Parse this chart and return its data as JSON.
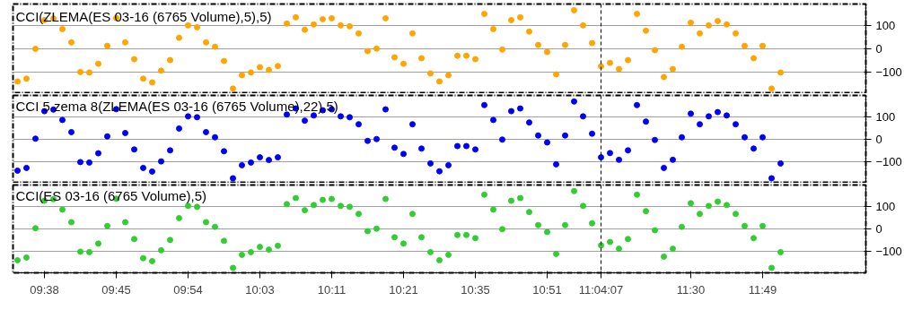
{
  "chart_data": [
    {
      "type": "scatter",
      "title": "CCI(ZLEMA(ES 03-16 (6765 Volume),5),5)",
      "categories": [
        null,
        null,
        null,
        "09:38",
        null,
        null,
        null,
        null,
        null,
        null,
        null,
        "09:45",
        null,
        null,
        null,
        null,
        null,
        null,
        null,
        "09:54",
        null,
        null,
        null,
        null,
        null,
        null,
        null,
        "10:03",
        null,
        null,
        null,
        null,
        null,
        null,
        null,
        "10:11",
        null,
        null,
        null,
        null,
        null,
        null,
        null,
        "10:21",
        null,
        null,
        null,
        null,
        null,
        null,
        null,
        "10:35",
        null,
        null,
        null,
        null,
        null,
        null,
        null,
        "10:51",
        null,
        null,
        null,
        null,
        null,
        "11:04:07",
        null,
        null,
        null,
        null,
        null,
        null,
        null,
        null,
        null,
        "11:30",
        null,
        null,
        null,
        null,
        null,
        null,
        null,
        "11:49",
        null,
        null,
        null,
        null,
        null,
        null,
        null,
        null,
        null,
        null,
        null
      ],
      "series": [
        {
          "color": "#ffa500",
          "values": [
            -142,
            -130,
            0,
            125,
            132,
            86,
            28,
            -101,
            -103,
            -65,
            13,
            134,
            28,
            -45,
            -130,
            -146,
            -95,
            -49,
            48,
            102,
            94,
            28,
            9,
            -53,
            -173,
            -115,
            -103,
            -80,
            -92,
            -75,
            110,
            137,
            83,
            106,
            129,
            133,
            102,
            98,
            67,
            -10,
            1,
            133,
            -37,
            -65,
            67,
            -41,
            -107,
            -142,
            -115,
            -30,
            -30,
            -45,
            152,
            86,
            -3,
            125,
            137,
            75,
            17,
            -14,
            -111,
            17,
            168,
            102,
            25,
            -76,
            -61,
            -88,
            -49,
            152,
            79,
            -6,
            -123,
            -88,
            9,
            114,
            67,
            102,
            121,
            106,
            67,
            13,
            -41,
            13,
            -173,
            -103,
            null,
            null,
            null,
            null,
            null,
            null,
            null,
            null,
            null
          ]
        }
      ],
      "ylim": [
        -195,
        195
      ],
      "yticks": [
        100,
        0,
        -100
      ],
      "grid": "y",
      "tick_labels": "y",
      "ref_lines": [
        {
          "axis": "x",
          "value": "11:04:07",
          "color": "#000000",
          "line_style": "dashed"
        }
      ]
    },
    {
      "type": "scatter",
      "title": "CCI 5 zema 8(ZLEMA(ES 03-16 (6765 Volume),22),5)",
      "categories": [
        null,
        null,
        null,
        "09:38",
        null,
        null,
        null,
        null,
        null,
        null,
        null,
        "09:45",
        null,
        null,
        null,
        null,
        null,
        null,
        null,
        "09:54",
        null,
        null,
        null,
        null,
        null,
        null,
        null,
        "10:03",
        null,
        null,
        null,
        null,
        null,
        null,
        null,
        "10:11",
        null,
        null,
        null,
        null,
        null,
        null,
        null,
        "10:21",
        null,
        null,
        null,
        null,
        null,
        null,
        null,
        "10:35",
        null,
        null,
        null,
        null,
        null,
        null,
        null,
        "10:51",
        null,
        null,
        null,
        null,
        null,
        "11:04:07",
        null,
        null,
        null,
        null,
        null,
        null,
        null,
        null,
        null,
        "11:30",
        null,
        null,
        null,
        null,
        null,
        null,
        null,
        "11:49",
        null,
        null,
        null,
        null,
        null,
        null,
        null,
        null,
        null,
        null,
        null
      ],
      "series": [
        {
          "color": "#0000ff",
          "values": [
            -139,
            -127,
            3,
            125,
            132,
            86,
            32,
            -101,
            -103,
            -62,
            13,
            134,
            28,
            -45,
            -127,
            -143,
            -98,
            -49,
            48,
            102,
            98,
            32,
            9,
            -53,
            -173,
            -115,
            -103,
            -80,
            -92,
            -80,
            110,
            137,
            83,
            106,
            129,
            133,
            102,
            98,
            67,
            -7,
            1,
            133,
            -37,
            -65,
            67,
            -41,
            -107,
            -142,
            -115,
            -30,
            -30,
            -45,
            152,
            86,
            -1,
            125,
            137,
            75,
            17,
            -14,
            -111,
            17,
            168,
            102,
            25,
            -80,
            -61,
            -91,
            -49,
            152,
            79,
            -3,
            -127,
            -91,
            9,
            114,
            67,
            102,
            121,
            106,
            67,
            9,
            -41,
            9,
            -173,
            -107,
            null,
            null,
            null,
            null,
            null,
            null,
            null,
            null,
            null
          ]
        }
      ],
      "ylim": [
        -195,
        195
      ],
      "yticks": [
        100,
        0,
        -100
      ],
      "grid": "y",
      "tick_labels": "y",
      "ref_lines": [
        {
          "axis": "x",
          "value": "11:04:07",
          "color": "#000000",
          "line_style": "dashed"
        }
      ]
    },
    {
      "type": "scatter",
      "title": "CCI(ES 03-16 (6765 Volume),5)",
      "categories": [
        null,
        null,
        null,
        "09:38",
        null,
        null,
        null,
        null,
        null,
        null,
        null,
        "09:45",
        null,
        null,
        null,
        null,
        null,
        null,
        null,
        "09:54",
        null,
        null,
        null,
        null,
        null,
        null,
        null,
        "10:03",
        null,
        null,
        null,
        null,
        null,
        null,
        null,
        "10:11",
        null,
        null,
        null,
        null,
        null,
        null,
        null,
        "10:21",
        null,
        null,
        null,
        null,
        null,
        null,
        null,
        "10:35",
        null,
        null,
        null,
        null,
        null,
        null,
        null,
        "10:51",
        null,
        null,
        null,
        null,
        null,
        "11:04:07",
        null,
        null,
        null,
        null,
        null,
        null,
        null,
        null,
        null,
        "11:30",
        null,
        null,
        null,
        null,
        null,
        null,
        null,
        "11:49",
        null,
        null,
        null,
        null,
        null,
        null,
        null,
        null,
        null,
        null,
        null
      ],
      "series": [
        {
          "color": "#32cd32",
          "values": [
            -139,
            -127,
            3,
            125,
            132,
            86,
            30,
            -101,
            -103,
            -65,
            13,
            134,
            30,
            -45,
            -130,
            -143,
            -95,
            -49,
            48,
            102,
            98,
            30,
            9,
            -53,
            -173,
            -115,
            -103,
            -80,
            -92,
            -75,
            110,
            137,
            83,
            106,
            129,
            133,
            102,
            98,
            67,
            -10,
            1,
            133,
            -37,
            -65,
            67,
            -37,
            -103,
            -139,
            -115,
            -27,
            -27,
            -41,
            152,
            86,
            -1,
            125,
            137,
            75,
            17,
            -14,
            -111,
            17,
            168,
            102,
            25,
            -73,
            -58,
            -88,
            -45,
            152,
            79,
            -6,
            -123,
            -88,
            9,
            114,
            67,
            102,
            121,
            106,
            67,
            13,
            -41,
            13,
            -173,
            -103,
            null,
            null,
            null,
            null,
            null,
            null,
            null,
            null,
            null
          ]
        }
      ],
      "ylim": [
        -195,
        195
      ],
      "yticks": [
        100,
        0,
        -100
      ],
      "grid": "y",
      "ref_lines": [
        {
          "axis": "x",
          "value": "11:04:07",
          "color": "#000000",
          "line_style": "dashed"
        }
      ]
    }
  ]
}
